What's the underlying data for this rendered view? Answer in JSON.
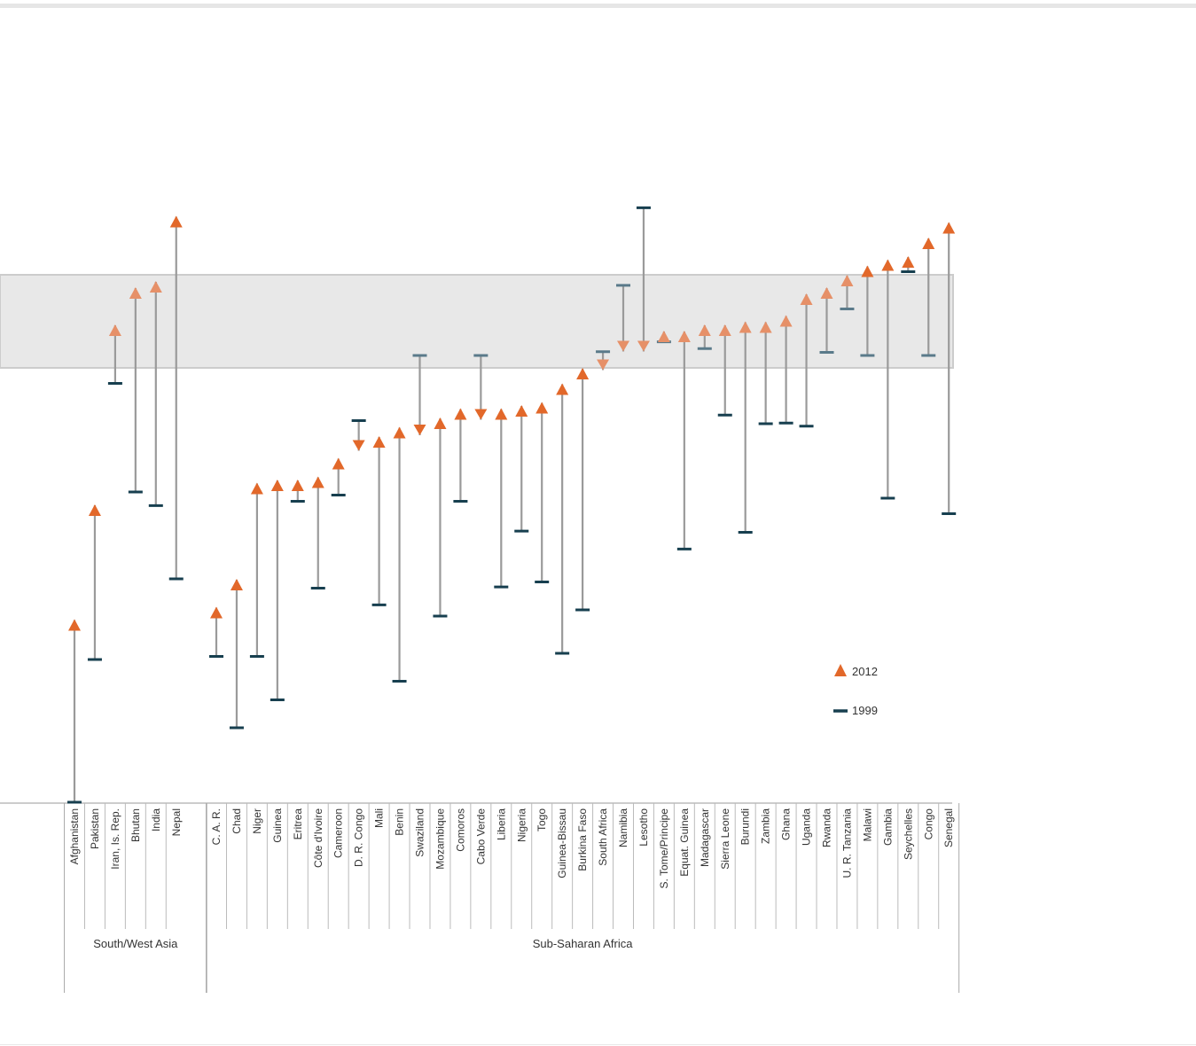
{
  "chart_data": {
    "type": "dumbbell",
    "title": "",
    "xlabel": "",
    "ylabel": "",
    "ylim": [
      0,
      1
    ],
    "legend": {
      "placement": "right",
      "entries": [
        {
          "key": "2012",
          "label": "2012",
          "marker": "triangle"
        },
        {
          "key": "1999",
          "label": "1999",
          "marker": "dash"
        }
      ]
    },
    "band": {
      "low": 0.7,
      "high": 0.85
    },
    "groups": [
      {
        "name": "South/West Asia",
        "categories": [
          "Afghanistan",
          "Pakistan",
          "Iran, Is. Rep.",
          "Bhutan",
          "India",
          "Nepal"
        ]
      },
      {
        "name": "Sub-Saharan Africa",
        "categories": [
          "C. A. R.",
          "Chad",
          "Niger",
          "Guinea",
          "Eritrea",
          "Côte d'Ivoire",
          "Cameroon",
          "D. R. Congo",
          "Mali",
          "Benin",
          "Swaziland",
          "Mozambique",
          "Comoros",
          "Cabo Verde",
          "Liberia",
          "Nigeria",
          "Togo",
          "Guinea-Bissau",
          "Burkina Faso",
          "South Africa",
          "Namibia",
          "Lesotho",
          "S. Tome/Principe",
          "Equat. Guinea",
          "Madagascar",
          "Sierra Leone",
          "Burundi",
          "Zambia",
          "Ghana",
          "Uganda",
          "Rwanda",
          "U. R. Tanzania",
          "Malawi",
          "Gambia",
          "Seychelles",
          "Congo",
          "Senegal"
        ]
      }
    ],
    "series": [
      {
        "name": "2012",
        "values": [
          0.285,
          0.47,
          0.76,
          0.82,
          0.83,
          0.935,
          0.305,
          0.35,
          0.505,
          0.51,
          0.51,
          0.515,
          0.545,
          0.575,
          0.58,
          0.595,
          0.6,
          0.61,
          0.625,
          0.625,
          0.625,
          0.63,
          0.635,
          0.665,
          0.69,
          0.705,
          0.735,
          0.735,
          0.75,
          0.75,
          0.76,
          0.76,
          0.765,
          0.765,
          0.775,
          0.81,
          0.82,
          0.84,
          0.855,
          0.865,
          0.87,
          0.9,
          0.925
        ]
      },
      {
        "name": "1999",
        "values": [
          0.0,
          0.23,
          0.675,
          0.5,
          0.478,
          0.36,
          0.235,
          0.12,
          0.235,
          0.165,
          0.485,
          0.345,
          0.495,
          0.615,
          0.318,
          0.195,
          0.72,
          0.3,
          0.485,
          0.72,
          0.347,
          0.437,
          0.355,
          0.24,
          0.31,
          0.726,
          0.833,
          0.958,
          0.742,
          0.408,
          0.731,
          0.624,
          0.435,
          0.61,
          0.611,
          0.606,
          0.725,
          0.795,
          0.72,
          0.49,
          0.855,
          0.72,
          0.465
        ]
      }
    ]
  }
}
